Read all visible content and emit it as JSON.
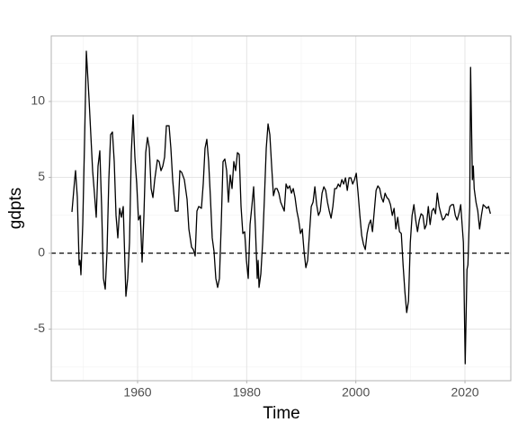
{
  "chart_data": {
    "type": "line",
    "x_label": "Time",
    "y_label": "gdpts",
    "xlim": [
      1944.18,
      2028.4
    ],
    "ylim": [
      -8.4,
      14.32
    ],
    "xticks": [
      1960,
      1980,
      2000,
      2020
    ],
    "yticks": [
      -5,
      0,
      5,
      10
    ],
    "minor_xticks": [
      1950,
      1970,
      1990,
      2010
    ],
    "minor_yticks": [
      -7.5,
      -2.5,
      2.5,
      7.5,
      12.5
    ],
    "grid": true,
    "hline": 0,
    "series": [
      {
        "color": "#000000",
        "x": [
          1947.97,
          1948.47,
          1948.63,
          1948.96,
          1949.29,
          1949.45,
          1949.62,
          1949.95,
          1950.28,
          1950.61,
          1951.1,
          1951.43,
          1951.76,
          1952.09,
          1952.42,
          1952.75,
          1953.08,
          1953.41,
          1953.74,
          1954.07,
          1954.4,
          1954.73,
          1955.06,
          1955.39,
          1955.72,
          1956.05,
          1956.38,
          1956.71,
          1957.04,
          1957.37,
          1957.86,
          1958.19,
          1958.52,
          1958.85,
          1959.18,
          1959.51,
          1959.84,
          1960.17,
          1960.5,
          1960.83,
          1961.16,
          1961.49,
          1961.82,
          1962.15,
          1962.48,
          1962.81,
          1963.14,
          1963.63,
          1963.96,
          1964.29,
          1964.62,
          1964.95,
          1965.28,
          1965.77,
          1966.1,
          1966.43,
          1966.92,
          1967.42,
          1967.75,
          1968.08,
          1968.57,
          1969.07,
          1969.4,
          1969.89,
          1970.22,
          1970.55,
          1970.88,
          1971.21,
          1971.7,
          1972.03,
          1972.36,
          1972.69,
          1973.02,
          1973.35,
          1973.68,
          1974.01,
          1974.34,
          1974.67,
          1975.0,
          1975.33,
          1975.66,
          1975.99,
          1976.32,
          1976.65,
          1976.98,
          1977.31,
          1977.64,
          1977.97,
          1978.3,
          1978.63,
          1978.96,
          1979.29,
          1979.62,
          1979.95,
          1980.28,
          1980.61,
          1980.94,
          1981.27,
          1981.6,
          1981.93,
          1982.09,
          1982.26,
          1982.59,
          1982.92,
          1983.25,
          1983.58,
          1983.91,
          1984.24,
          1984.57,
          1984.9,
          1985.23,
          1985.56,
          1985.89,
          1986.22,
          1986.55,
          1986.88,
          1987.21,
          1987.54,
          1987.87,
          1988.2,
          1988.53,
          1988.86,
          1989.19,
          1989.52,
          1989.85,
          1990.18,
          1990.51,
          1990.84,
          1991.17,
          1991.5,
          1991.83,
          1992.16,
          1992.49,
          1992.82,
          1993.15,
          1993.48,
          1993.81,
          1994.14,
          1994.47,
          1994.8,
          1995.13,
          1995.46,
          1995.79,
          1996.12,
          1996.45,
          1996.78,
          1997.11,
          1997.44,
          1997.77,
          1998.1,
          1998.43,
          1998.76,
          1999.09,
          1999.42,
          1999.75,
          2000.08,
          2000.41,
          2000.74,
          2001.07,
          2001.4,
          2001.73,
          2002.06,
          2002.39,
          2002.72,
          2003.05,
          2003.38,
          2003.71,
          2004.04,
          2004.37,
          2004.7,
          2005.03,
          2005.36,
          2005.69,
          2006.02,
          2006.35,
          2006.68,
          2007.01,
          2007.34,
          2007.67,
          2008.0,
          2008.33,
          2008.66,
          2008.99,
          2009.32,
          2009.65,
          2009.98,
          2010.31,
          2010.64,
          2010.97,
          2011.3,
          2011.63,
          2011.96,
          2012.29,
          2012.62,
          2012.95,
          2013.28,
          2013.61,
          2013.94,
          2014.27,
          2014.6,
          2014.93,
          2015.26,
          2015.59,
          2015.92,
          2016.25,
          2016.58,
          2016.91,
          2017.24,
          2017.57,
          2017.9,
          2018.23,
          2018.56,
          2018.89,
          2019.22,
          2019.71,
          2020.04,
          2020.37,
          2020.54,
          2020.87,
          2021.03,
          2021.36,
          2021.53,
          2021.69,
          2022.02,
          2022.35,
          2022.68,
          2023.01,
          2023.34,
          2023.67,
          2024.0,
          2024.33,
          2024.66
        ],
        "values": [
          2.72,
          4.85,
          5.44,
          3.67,
          -0.77,
          -0.47,
          -1.42,
          1.89,
          7.28,
          13.31,
          10.18,
          7.81,
          5.44,
          3.96,
          2.37,
          5.74,
          6.75,
          3.08,
          -1.66,
          -2.37,
          0.12,
          4.85,
          7.81,
          7.99,
          6.04,
          2.49,
          1.01,
          2.96,
          2.37,
          3.08,
          -2.84,
          -1.66,
          0.71,
          6.63,
          9.11,
          6.33,
          4.56,
          2.19,
          2.49,
          -0.59,
          2.49,
          6.63,
          7.63,
          6.92,
          4.26,
          3.67,
          4.85,
          6.15,
          6.04,
          5.44,
          5.74,
          6.33,
          8.4,
          8.4,
          6.92,
          4.85,
          2.78,
          2.78,
          5.44,
          5.33,
          4.85,
          3.55,
          1.6,
          0.41,
          0.24,
          -0.18,
          2.78,
          3.08,
          2.96,
          4.56,
          6.92,
          7.51,
          6.04,
          3.67,
          1.01,
          0.12,
          -1.66,
          -2.25,
          -1.66,
          1.89,
          6.04,
          6.21,
          5.44,
          3.37,
          5.15,
          4.26,
          6.04,
          5.44,
          6.63,
          6.51,
          3.08,
          1.3,
          1.42,
          -0.47,
          -1.66,
          1.89,
          3.08,
          4.38,
          1.6,
          -1.66,
          -0.47,
          -2.25,
          -1.36,
          0.71,
          3.67,
          6.92,
          8.52,
          7.81,
          5.74,
          3.79,
          4.26,
          4.26,
          3.96,
          3.37,
          3.08,
          2.78,
          4.56,
          4.26,
          4.44,
          3.96,
          4.26,
          3.67,
          2.78,
          2.19,
          1.3,
          1.6,
          0.12,
          -0.95,
          -0.47,
          1.3,
          3.08,
          3.37,
          4.38,
          3.2,
          2.49,
          2.78,
          3.96,
          4.38,
          4.14,
          3.37,
          2.78,
          2.31,
          3.08,
          4.26,
          4.26,
          4.56,
          4.38,
          4.85,
          4.56,
          4.97,
          4.14,
          4.97,
          4.97,
          4.56,
          4.85,
          5.27,
          3.96,
          2.49,
          1.18,
          0.59,
          0.24,
          1.3,
          1.89,
          2.19,
          1.42,
          2.78,
          4.14,
          4.44,
          4.26,
          3.67,
          3.37,
          3.96,
          3.67,
          3.55,
          3.2,
          2.49,
          2.96,
          1.6,
          2.37,
          1.42,
          1.3,
          -0.77,
          -2.54,
          -3.91,
          -3.14,
          0.71,
          2.49,
          3.2,
          2.19,
          1.42,
          2.19,
          2.6,
          2.49,
          1.6,
          1.89,
          3.08,
          1.89,
          2.78,
          2.96,
          2.6,
          3.96,
          3.08,
          2.6,
          2.19,
          2.31,
          2.6,
          2.49,
          3.08,
          3.2,
          3.2,
          2.49,
          2.19,
          2.6,
          3.2,
          0.71,
          -7.28,
          -1.07,
          -0.77,
          3.08,
          12.25,
          4.85,
          5.74,
          4.26,
          3.37,
          2.78,
          1.6,
          2.49,
          3.2,
          3.08,
          2.96,
          3.08,
          2.6
        ]
      }
    ]
  }
}
